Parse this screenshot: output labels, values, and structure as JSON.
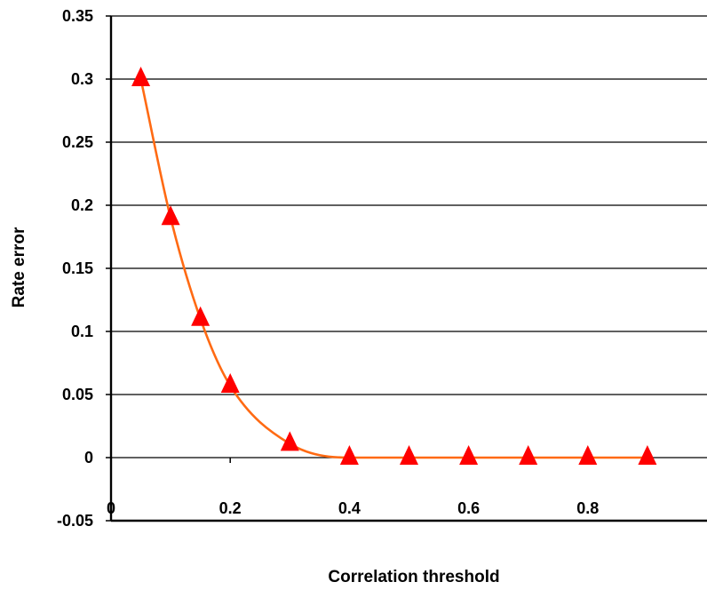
{
  "chart_data": {
    "type": "scatter",
    "title": "",
    "xlabel": "Correlation threshold",
    "ylabel": "Rate error",
    "xlim": [
      0,
      1
    ],
    "ylim": [
      -0.05,
      0.35
    ],
    "grid": "horizontal",
    "x_ticks": [
      {
        "value": 0,
        "label": "0"
      },
      {
        "value": 0.2,
        "label": "0.2"
      },
      {
        "value": 0.4,
        "label": "0.4"
      },
      {
        "value": 0.6,
        "label": "0.6"
      },
      {
        "value": 0.8,
        "label": "0.8"
      }
    ],
    "y_ticks": [
      {
        "value": 0.35,
        "label": "0.35"
      },
      {
        "value": 0.3,
        "label": "0.3"
      },
      {
        "value": 0.25,
        "label": "0.25"
      },
      {
        "value": 0.2,
        "label": "0.2"
      },
      {
        "value": 0.15,
        "label": "0.15"
      },
      {
        "value": 0.1,
        "label": "0.1"
      },
      {
        "value": 0.05,
        "label": "0.05"
      },
      {
        "value": 0,
        "label": "0"
      },
      {
        "value": -0.05,
        "label": "-0.05"
      }
    ],
    "series": [
      {
        "x": [
          0.05,
          0.1,
          0.15,
          0.2,
          0.3,
          0.4,
          0.5,
          0.6,
          0.7,
          0.8,
          0.9
        ],
        "y": [
          0.3,
          0.19,
          0.11,
          0.057,
          0.011,
          0,
          0,
          0,
          0,
          0,
          0
        ],
        "marker": "triangle",
        "marker_color": "#ff0000",
        "line": "smooth",
        "line_color": "#ff6a13"
      }
    ],
    "colors": {
      "axis": "#000000",
      "grid": "#000000"
    }
  }
}
